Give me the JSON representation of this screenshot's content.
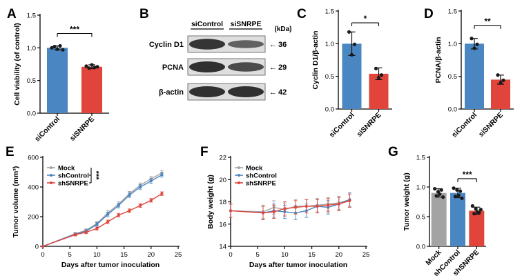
{
  "colors": {
    "blue": "#4a86c1",
    "red": "#e0443a",
    "gray": "#a3a3a3",
    "blot_band": "#262626",
    "blot_bg": "#dedede",
    "axis": "#000000"
  },
  "chart_data": [
    {
      "panel": "A",
      "type": "bar",
      "ylabel": "Cell viability (of control)",
      "xlabel": "",
      "ylim": [
        0,
        1.5
      ],
      "yticks": [
        "0.0",
        "0.5",
        "1.0",
        "1.5"
      ],
      "categories": [
        "siControl",
        "siSNRPE"
      ],
      "values": [
        1.0,
        0.71
      ],
      "errors": [
        0.03,
        0.03
      ],
      "points": [
        [
          1.0,
          1.02,
          0.98,
          1.03,
          0.97
        ],
        [
          0.72,
          0.69,
          0.74,
          0.7,
          0.71
        ]
      ],
      "colors": [
        "#4a86c1",
        "#e0443a"
      ],
      "significance": "***"
    },
    {
      "panel": "B",
      "type": "western_blot",
      "lanes": [
        "siControl",
        "siSNRPE"
      ],
      "unit": "(kDa)",
      "rows": [
        {
          "label": "Cyclin D1",
          "kda": "36",
          "intensity": [
            0.95,
            0.55
          ]
        },
        {
          "label": "PCNA",
          "kda": "29",
          "intensity": [
            1.0,
            0.75
          ]
        },
        {
          "label": "β-actin",
          "kda": "42",
          "intensity": [
            1.0,
            1.0
          ]
        }
      ]
    },
    {
      "panel": "C",
      "type": "bar",
      "ylabel": "Cyclin D1/β-actin",
      "xlabel": "",
      "ylim": [
        0,
        1.5
      ],
      "yticks": [
        "0.0",
        "0.5",
        "1.0",
        "1.5"
      ],
      "categories": [
        "siControl",
        "siSNRPE"
      ],
      "values": [
        1.0,
        0.54
      ],
      "errors": [
        0.18,
        0.09
      ],
      "points": [
        [
          1.18,
          0.83,
          0.99
        ],
        [
          0.62,
          0.48,
          0.52
        ]
      ],
      "colors": [
        "#4a86c1",
        "#e0443a"
      ],
      "significance": "*"
    },
    {
      "panel": "D",
      "type": "bar",
      "ylabel": "PCNA/β-actin",
      "xlabel": "",
      "ylim": [
        0,
        1.5
      ],
      "yticks": [
        "0.0",
        "0.5",
        "1.0",
        "1.5"
      ],
      "categories": [
        "siControl",
        "siSNRPE"
      ],
      "values": [
        1.0,
        0.45
      ],
      "errors": [
        0.08,
        0.07
      ],
      "points": [
        [
          1.08,
          0.93,
          0.99
        ],
        [
          0.52,
          0.4,
          0.44
        ]
      ],
      "colors": [
        "#4a86c1",
        "#e0443a"
      ],
      "significance": "**"
    },
    {
      "panel": "E",
      "type": "line",
      "ylabel": "Tumor volume (mm³)",
      "xlabel": "Days after tumor inoculation",
      "xlim": [
        0,
        25
      ],
      "ylim": [
        0,
        600
      ],
      "xticks": [
        "0",
        "5",
        "10",
        "15",
        "20",
        "25"
      ],
      "yticks": [
        "0",
        "200",
        "400",
        "600"
      ],
      "x": [
        0,
        6,
        8,
        10,
        12,
        14,
        16,
        18,
        20,
        22
      ],
      "series": [
        {
          "name": "Mock",
          "color": "#a3a3a3",
          "values": [
            0,
            85,
            108,
            155,
            225,
            285,
            355,
            412,
            455,
            495
          ],
          "errors": [
            0,
            8,
            10,
            12,
            15,
            15,
            15,
            15,
            15,
            15
          ]
        },
        {
          "name": "shControl",
          "color": "#4a86c1",
          "values": [
            0,
            82,
            102,
            148,
            215,
            275,
            345,
            400,
            440,
            482
          ],
          "errors": [
            0,
            8,
            10,
            12,
            15,
            15,
            15,
            15,
            15,
            15
          ]
        },
        {
          "name": "shSNRPE",
          "color": "#e0443a",
          "values": [
            0,
            78,
            95,
            120,
            165,
            210,
            240,
            275,
            310,
            355
          ],
          "errors": [
            0,
            8,
            10,
            10,
            12,
            12,
            12,
            12,
            12,
            12
          ]
        }
      ],
      "legend": "top-left",
      "significance": "***"
    },
    {
      "panel": "F",
      "type": "line",
      "ylabel": "Body weight (g)",
      "xlabel": "Days after tumor inoculation",
      "xlim": [
        0,
        25
      ],
      "ylim": [
        14,
        22
      ],
      "xticks": [
        "0",
        "5",
        "10",
        "15",
        "20",
        "25"
      ],
      "yticks": [
        "14",
        "16",
        "18",
        "20",
        "22"
      ],
      "x": [
        0,
        6,
        8,
        10,
        12,
        14,
        16,
        18,
        20,
        22
      ],
      "series": [
        {
          "name": "Mock",
          "color": "#a3a3a3",
          "values": [
            17.2,
            17.1,
            17.5,
            17.3,
            17.6,
            17.6,
            17.7,
            17.8,
            17.9,
            18.2
          ],
          "errors": [
            0.6,
            0.6,
            0.6,
            0.6,
            0.6,
            0.6,
            0.6,
            0.6,
            0.6,
            0.6
          ]
        },
        {
          "name": "shControl",
          "color": "#4a86c1",
          "values": [
            17.2,
            17.0,
            17.2,
            17.1,
            17.0,
            17.2,
            17.6,
            17.5,
            17.8,
            18.2
          ],
          "errors": [
            0.6,
            0.6,
            0.6,
            0.6,
            0.6,
            0.6,
            0.6,
            0.6,
            0.6,
            0.6
          ]
        },
        {
          "name": "shSNRPE",
          "color": "#e0443a",
          "values": [
            17.2,
            17.0,
            17.1,
            17.4,
            17.5,
            17.6,
            17.6,
            17.7,
            17.8,
            18.1
          ],
          "errors": [
            0.6,
            0.6,
            0.6,
            0.6,
            0.6,
            0.6,
            0.6,
            0.6,
            0.6,
            0.6
          ]
        }
      ],
      "legend": "top-left"
    },
    {
      "panel": "G",
      "type": "bar",
      "ylabel": "Tumor weight (g)",
      "xlabel": "",
      "ylim": [
        0,
        1.5
      ],
      "yticks": [
        "0.0",
        "0.5",
        "1.0",
        "1.5"
      ],
      "categories": [
        "Mock",
        "shControl",
        "shSNRPE"
      ],
      "values": [
        0.9,
        0.9,
        0.6
      ],
      "errors": [
        0.07,
        0.08,
        0.06
      ],
      "points": [
        [
          0.97,
          0.85,
          0.92,
          0.88,
          0.95,
          0.83
        ],
        [
          0.98,
          0.84,
          0.95,
          0.86,
          0.93,
          0.81
        ],
        [
          0.68,
          0.55,
          0.63,
          0.58,
          0.57,
          0.62
        ]
      ],
      "colors": [
        "#a3a3a3",
        "#4a86c1",
        "#e0443a"
      ],
      "significance": "***"
    }
  ]
}
